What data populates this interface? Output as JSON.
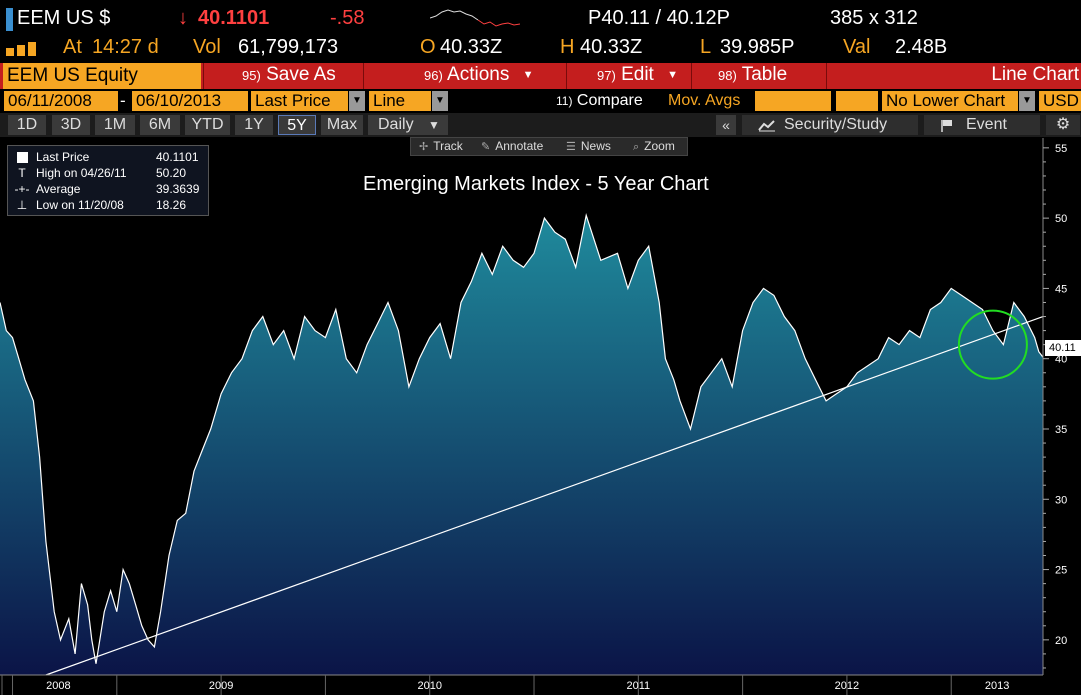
{
  "quote": {
    "ticker": "EEM US $",
    "direction_glyph": "↓",
    "last": "40.1101",
    "change": "-.58",
    "bid_ask": "P40.11 / 40.12P",
    "size": "385 x 312",
    "time_label": "At",
    "time": "14:27 d",
    "volume_label": "Vol",
    "volume": "61,799,173",
    "open_label": "O",
    "open": "40.33Z",
    "high_label": "H",
    "high": "40.33Z",
    "low_label": "L",
    "low": "39.985P",
    "value_label": "Val",
    "value": "2.48B",
    "down_color": "#ff4040",
    "accent_color": "#f6a623"
  },
  "function_bar": {
    "security": "EEM US Equity",
    "save_as_num": "95)",
    "save_as": "Save As",
    "actions_num": "96)",
    "actions": "Actions",
    "edit_num": "97)",
    "edit": "Edit",
    "table_num": "98)",
    "table": "Table",
    "chart_type": "Line Chart",
    "bar_color": "#c41e1e"
  },
  "settings": {
    "start_date": "06/11/2008",
    "end_date": "06/10/2013",
    "field": "Last Price",
    "style": "Line",
    "compare_num": "11)",
    "compare": "Compare",
    "moving_avgs": "Mov. Avgs",
    "lower_chart": "No Lower Chart",
    "currency": "USD"
  },
  "periods": {
    "buttons": [
      "1D",
      "3D",
      "1M",
      "6M",
      "YTD",
      "1Y",
      "5Y",
      "Max"
    ],
    "active": "5Y",
    "frequency": "Daily",
    "collapse": "«",
    "security_study": "Security/Study",
    "event": "Event"
  },
  "toolbar": {
    "track": "Track",
    "annotate": "Annotate",
    "news": "News",
    "zoom": "Zoom"
  },
  "legend": {
    "last_label": "Last Price",
    "last_value": "40.1101",
    "high_label": "High on 04/26/11",
    "high_value": "50.20",
    "avg_label": "Average",
    "avg_value": "39.3639",
    "low_label": "Low on 11/20/08",
    "low_value": "18.26"
  },
  "chart_data": {
    "type": "area",
    "title": "Emerging Markets Index - 5 Year Chart",
    "x_unit": "year",
    "x_ticks": [
      "2008",
      "2009",
      "2010",
      "2011",
      "2012",
      "2013"
    ],
    "x_tick_values": [
      2008.0,
      2009.0,
      2010.0,
      2011.0,
      2012.0,
      2013.0
    ],
    "xlim": [
      2008.44,
      2013.44
    ],
    "ylim": [
      17.5,
      55.7
    ],
    "y_ticks": [
      20,
      25,
      30,
      35,
      40,
      45,
      50,
      55
    ],
    "series": [
      {
        "x": [
          2008.44,
          2008.47,
          2008.5,
          2008.53,
          2008.56,
          2008.6,
          2008.63,
          2008.66,
          2008.7,
          2008.73,
          2008.77,
          2008.8,
          2008.83,
          2008.86,
          2008.88,
          2008.9,
          2008.94,
          2008.97,
          2009.0,
          2009.03,
          2009.06,
          2009.09,
          2009.12,
          2009.15,
          2009.18,
          2009.21,
          2009.25,
          2009.29,
          2009.33,
          2009.37,
          2009.41,
          2009.45,
          2009.5,
          2009.55,
          2009.6,
          2009.65,
          2009.7,
          2009.75,
          2009.8,
          2009.85,
          2009.9,
          2009.95,
          2010.0,
          2010.05,
          2010.1,
          2010.15,
          2010.2,
          2010.25,
          2010.3,
          2010.35,
          2010.4,
          2010.45,
          2010.5,
          2010.55,
          2010.6,
          2010.65,
          2010.7,
          2010.75,
          2010.8,
          2010.85,
          2010.9,
          2010.95,
          2011.0,
          2011.05,
          2011.1,
          2011.15,
          2011.2,
          2011.25,
          2011.32,
          2011.4,
          2011.45,
          2011.5,
          2011.55,
          2011.6,
          2011.63,
          2011.67,
          2011.7,
          2011.75,
          2011.8,
          2011.85,
          2011.9,
          2011.95,
          2012.0,
          2012.05,
          2012.1,
          2012.15,
          2012.2,
          2012.25,
          2012.3,
          2012.35,
          2012.4,
          2012.45,
          2012.5,
          2012.55,
          2012.6,
          2012.65,
          2012.7,
          2012.75,
          2012.8,
          2012.85,
          2012.9,
          2012.95,
          2013.0,
          2013.05,
          2013.1,
          2013.15,
          2013.2,
          2013.25,
          2013.3,
          2013.35,
          2013.4,
          2013.42,
          2013.44
        ],
        "y": [
          44.0,
          42.0,
          41.5,
          40.0,
          38.5,
          37.0,
          33.0,
          27.0,
          22.0,
          20.0,
          21.5,
          19.0,
          24.0,
          22.5,
          20.0,
          18.3,
          22.0,
          23.5,
          22.0,
          25.0,
          24.0,
          22.5,
          21.0,
          20.0,
          19.5,
          22.0,
          26.0,
          28.5,
          29.0,
          32.0,
          33.5,
          35.0,
          37.5,
          39.0,
          40.0,
          42.0,
          43.0,
          41.0,
          42.0,
          40.0,
          43.0,
          42.0,
          41.5,
          43.5,
          40.0,
          39.0,
          41.0,
          42.5,
          44.0,
          42.0,
          38.0,
          40.0,
          41.5,
          42.5,
          40.0,
          44.0,
          45.5,
          47.5,
          46.0,
          48.0,
          47.0,
          46.5,
          47.5,
          50.0,
          49.0,
          48.5,
          46.5,
          50.2,
          47.0,
          47.5,
          45.0,
          47.0,
          48.0,
          44.0,
          40.0,
          38.5,
          37.0,
          35.0,
          38.0,
          39.0,
          40.0,
          38.0,
          42.0,
          44.0,
          45.0,
          44.5,
          43.0,
          42.0,
          40.0,
          38.5,
          37.0,
          37.5,
          38.0,
          39.0,
          39.5,
          40.0,
          41.5,
          41.0,
          42.0,
          41.5,
          43.5,
          44.0,
          45.0,
          44.5,
          44.0,
          43.5,
          42.0,
          41.0,
          44.0,
          43.0,
          41.5,
          40.5,
          40.11
        ]
      }
    ],
    "annotations": {
      "trendline": {
        "start": [
          2008.66,
          17.5
        ],
        "end": [
          2013.44,
          43.0
        ]
      },
      "circle": {
        "center": [
          2013.43,
          41.0
        ],
        "radius_note": "highlight current price"
      }
    },
    "last_price_tag": "40.11",
    "grid": false,
    "legend_position": "top-left",
    "line_color": "#ffffff",
    "fill_top_color": "#1f8a9c",
    "fill_bottom_color": "#0b1447",
    "circle_color": "#22dd22"
  }
}
